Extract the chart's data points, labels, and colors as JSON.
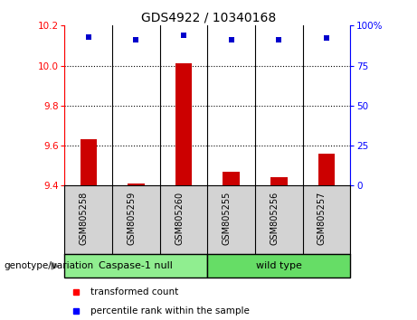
{
  "title": "GDS4922 / 10340168",
  "samples": [
    "GSM805258",
    "GSM805259",
    "GSM805260",
    "GSM805255",
    "GSM805256",
    "GSM805257"
  ],
  "transformed_counts": [
    9.63,
    9.41,
    10.01,
    9.47,
    9.44,
    9.56
  ],
  "percentile_ranks": [
    93,
    91,
    94,
    91,
    91,
    92
  ],
  "ylim_left": [
    9.4,
    10.2
  ],
  "ylim_right": [
    0,
    100
  ],
  "yticks_left": [
    9.4,
    9.6,
    9.8,
    10.0,
    10.2
  ],
  "yticks_right": [
    0,
    25,
    50,
    75,
    100
  ],
  "ytick_labels_right": [
    "0",
    "25",
    "50",
    "75",
    "100%"
  ],
  "bar_color": "#cc0000",
  "dot_color": "#0000cc",
  "bar_width": 0.35,
  "background_plot": "#ffffff",
  "sample_bg": "#d3d3d3",
  "group1_color": "#90ee90",
  "group2_color": "#66dd66",
  "legend_red_label": "transformed count",
  "legend_blue_label": "percentile rank within the sample",
  "genotype_label": "genotype/variation",
  "baseline": 9.4,
  "grid_yticks": [
    9.6,
    9.8,
    10.0
  ],
  "group_labels": [
    "Caspase-1 null",
    "wild type"
  ],
  "group_ranges": [
    [
      0,
      2
    ],
    [
      3,
      5
    ]
  ]
}
